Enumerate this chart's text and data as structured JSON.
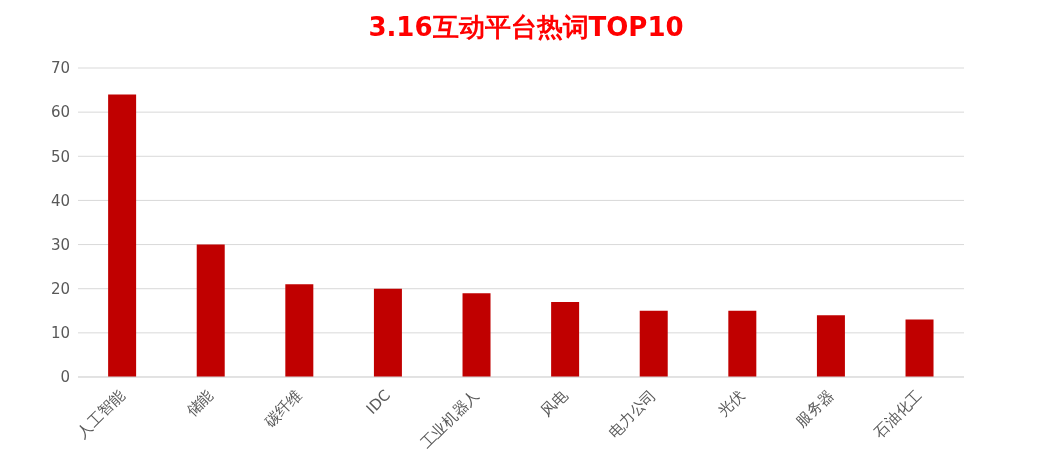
{
  "chart_data": {
    "type": "bar",
    "title": "3.16互动平台热词TOP10",
    "categories": [
      "人工智能",
      "储能",
      "碳纤维",
      "IDC",
      "工业机器人",
      "风电",
      "电力公司",
      "光伏",
      "服务器",
      "石油化工"
    ],
    "values": [
      64,
      30,
      21,
      20,
      19,
      17,
      15,
      15,
      14,
      13
    ],
    "color": "#c00000",
    "ylim": [
      0,
      70
    ],
    "yticks": [
      0,
      10,
      20,
      30,
      40,
      50,
      60,
      70
    ],
    "grid": "y"
  }
}
